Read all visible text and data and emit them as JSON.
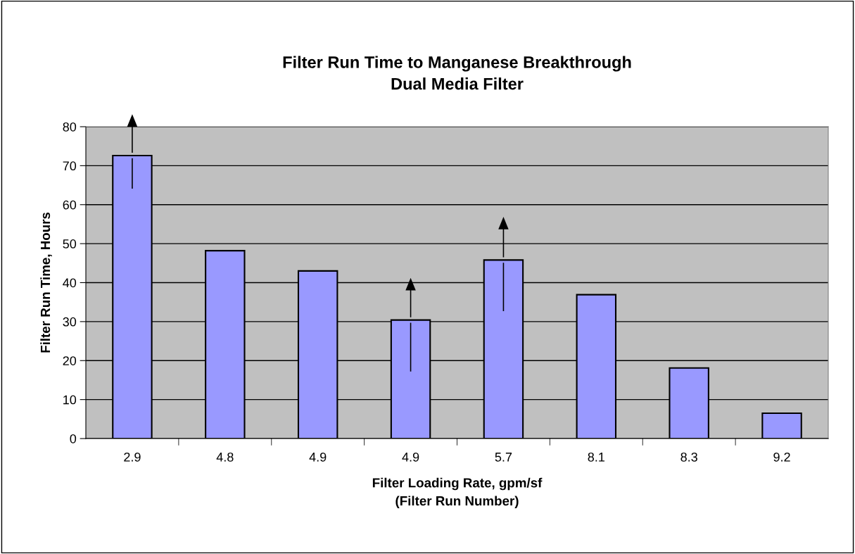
{
  "chart_data": {
    "type": "bar",
    "title": "Filter Run Time to Manganese Breakthrough\nDual Media Filter",
    "xlabel": "Filter Loading Rate, gpm/sf\n(Filter Run Number)",
    "ylabel": "Filter Run Time, Hours",
    "categories": [
      "2.9",
      "4.8",
      "4.9",
      "4.9",
      "5.7",
      "8.1",
      "8.3",
      "9.2"
    ],
    "values": [
      72.6,
      48.2,
      43.0,
      30.4,
      45.8,
      36.9,
      18.1,
      6.5
    ],
    "color": "#9999ff",
    "ylim": [
      0,
      80
    ],
    "yticks": [
      0,
      10,
      20,
      30,
      40,
      50,
      60,
      70,
      80
    ],
    "grid": "y"
  }
}
